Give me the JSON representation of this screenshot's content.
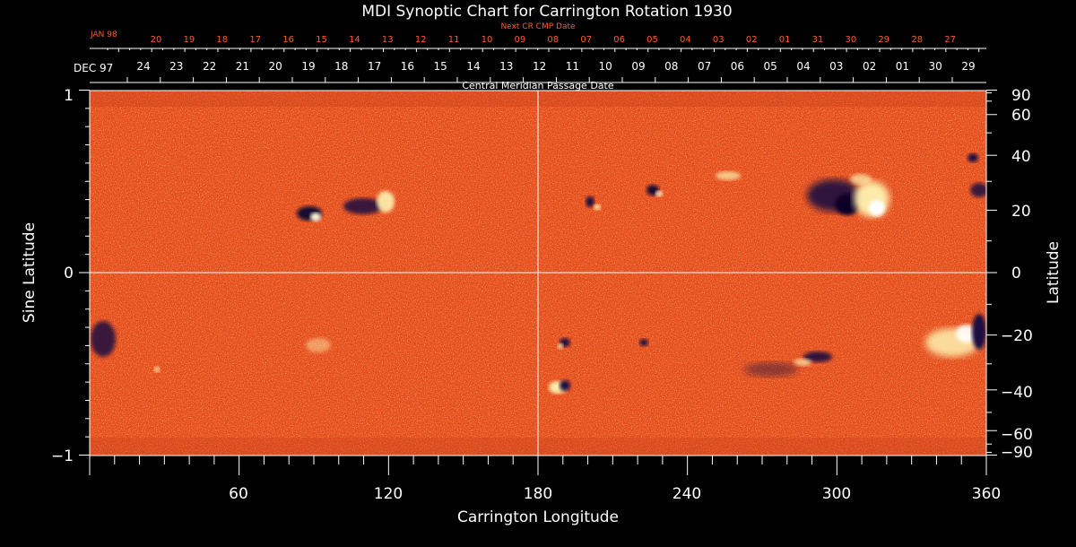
{
  "title": "MDI Synoptic Chart for Carrington Rotation 1930",
  "next_cr_label": "Next CR CMP Date",
  "cmp_label": "Central Meridian Passage Date",
  "top_month": "JAN 98",
  "bottom_month": "DEC 97",
  "top_dates": [
    "20",
    "19",
    "18",
    "17",
    "16",
    "15",
    "14",
    "13",
    "12",
    "11",
    "10",
    "09",
    "08",
    "07",
    "06",
    "05",
    "04",
    "03",
    "02",
    "01",
    "31",
    "30",
    "29",
    "28",
    "27"
  ],
  "bottom_dates": [
    "24",
    "23",
    "22",
    "21",
    "20",
    "19",
    "18",
    "17",
    "16",
    "15",
    "14",
    "13",
    "12",
    "11",
    "10",
    "09",
    "08",
    "07",
    "06",
    "05",
    "04",
    "03",
    "02",
    "01",
    "30",
    "29"
  ],
  "x_axis": {
    "label": "Carrington Longitude",
    "range": [
      0,
      360
    ],
    "ticks": [
      "60",
      "120",
      "180",
      "240",
      "300",
      "360"
    ]
  },
  "y_left": {
    "label": "Sine Latitude",
    "range": [
      -1,
      1
    ],
    "ticks": [
      "1",
      "0",
      "−1"
    ]
  },
  "y_right": {
    "label": "Latitude",
    "ticks": [
      "90",
      "60",
      "40",
      "20",
      "0",
      "−20",
      "−40",
      "−60",
      "−90"
    ]
  },
  "colors": {
    "background": "#000000",
    "map_base": "#f0501a",
    "positive": "#fff2b0",
    "negative": "#1a1040",
    "accent_text": "#ff5a2a"
  }
}
